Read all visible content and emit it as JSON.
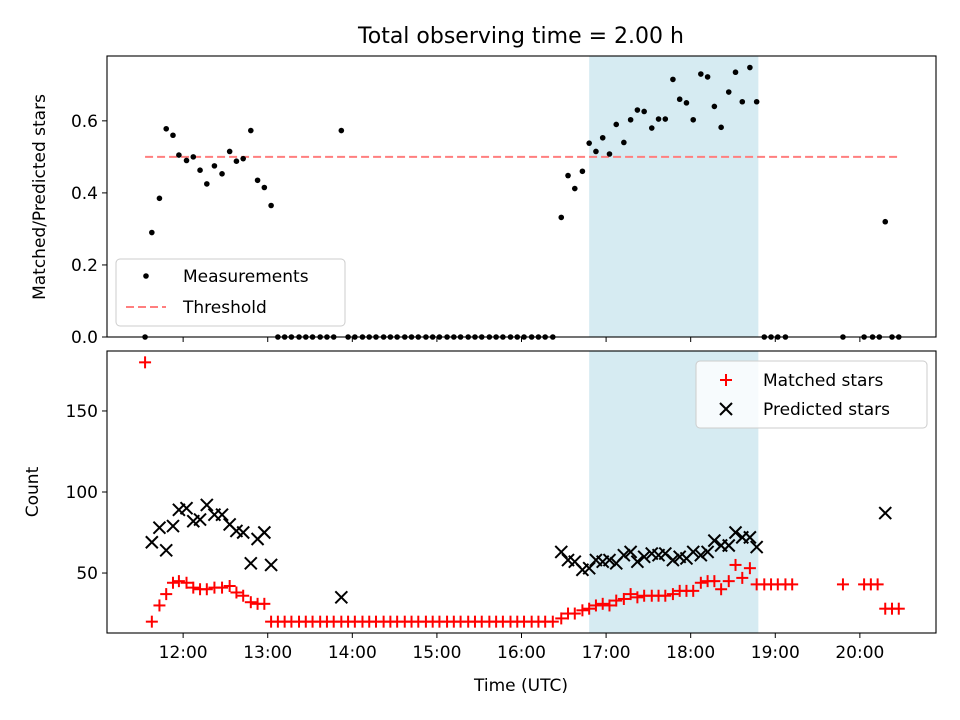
{
  "chart_data": [
    {
      "type": "scatter",
      "title": "Total observing time = 2.00 h",
      "ylabel": "Matched/Predicted stars",
      "xlim": [
        11.1,
        20.9
      ],
      "ylim": [
        0.0,
        0.78
      ],
      "yticks": [
        0.0,
        0.2,
        0.4,
        0.6
      ],
      "ytick_labels": [
        "0.0",
        "0.2",
        "0.4",
        "0.6"
      ],
      "xticks": [
        12,
        13,
        14,
        15,
        16,
        17,
        18,
        19,
        20
      ],
      "highlight_span": [
        16.8,
        18.8
      ],
      "highlight_color": "#add8e6",
      "threshold": {
        "name": "Threshold",
        "y": 0.5,
        "x_range": [
          11.55,
          20.45
        ],
        "color": "#ff7f7f"
      },
      "legend": {
        "position": "lower-left",
        "entries": [
          "Measurements",
          "Threshold"
        ]
      },
      "series": [
        {
          "name": "Measurements",
          "color": "#000000",
          "marker": "dot",
          "points": [
            [
              11.55,
              0.0
            ],
            [
              11.63,
              0.29
            ],
            [
              11.72,
              0.385
            ],
            [
              11.8,
              0.578
            ],
            [
              11.88,
              0.56
            ],
            [
              11.95,
              0.505
            ],
            [
              12.04,
              0.49
            ],
            [
              12.12,
              0.5
            ],
            [
              12.2,
              0.463
            ],
            [
              12.28,
              0.425
            ],
            [
              12.37,
              0.475
            ],
            [
              12.46,
              0.453
            ],
            [
              12.55,
              0.515
            ],
            [
              12.63,
              0.488
            ],
            [
              12.71,
              0.495
            ],
            [
              12.8,
              0.573
            ],
            [
              12.88,
              0.435
            ],
            [
              12.96,
              0.415
            ],
            [
              13.04,
              0.365
            ],
            [
              13.12,
              0.0
            ],
            [
              13.2,
              0.0
            ],
            [
              13.28,
              0.0
            ],
            [
              13.37,
              0.0
            ],
            [
              13.45,
              0.0
            ],
            [
              13.53,
              0.0
            ],
            [
              13.62,
              0.0
            ],
            [
              13.7,
              0.0
            ],
            [
              13.78,
              0.0
            ],
            [
              13.87,
              0.573
            ],
            [
              13.95,
              0.0
            ],
            [
              14.03,
              0.0
            ],
            [
              14.12,
              0.0
            ],
            [
              14.2,
              0.0
            ],
            [
              14.28,
              0.0
            ],
            [
              14.37,
              0.0
            ],
            [
              14.45,
              0.0
            ],
            [
              14.53,
              0.0
            ],
            [
              14.62,
              0.0
            ],
            [
              14.7,
              0.0
            ],
            [
              14.78,
              0.0
            ],
            [
              14.87,
              0.0
            ],
            [
              14.95,
              0.0
            ],
            [
              15.03,
              0.0
            ],
            [
              15.12,
              0.0
            ],
            [
              15.2,
              0.0
            ],
            [
              15.28,
              0.0
            ],
            [
              15.37,
              0.0
            ],
            [
              15.45,
              0.0
            ],
            [
              15.53,
              0.0
            ],
            [
              15.62,
              0.0
            ],
            [
              15.7,
              0.0
            ],
            [
              15.78,
              0.0
            ],
            [
              15.87,
              0.0
            ],
            [
              15.95,
              0.0
            ],
            [
              16.03,
              0.0
            ],
            [
              16.12,
              0.0
            ],
            [
              16.2,
              0.0
            ],
            [
              16.28,
              0.0
            ],
            [
              16.37,
              0.0
            ],
            [
              16.47,
              0.332
            ],
            [
              16.55,
              0.448
            ],
            [
              16.63,
              0.412
            ],
            [
              16.72,
              0.46
            ],
            [
              16.8,
              0.538
            ],
            [
              16.88,
              0.515
            ],
            [
              16.96,
              0.553
            ],
            [
              17.04,
              0.508
            ],
            [
              17.12,
              0.59
            ],
            [
              17.21,
              0.54
            ],
            [
              17.29,
              0.603
            ],
            [
              17.37,
              0.63
            ],
            [
              17.45,
              0.626
            ],
            [
              17.54,
              0.58
            ],
            [
              17.62,
              0.605
            ],
            [
              17.7,
              0.605
            ],
            [
              17.79,
              0.715
            ],
            [
              17.87,
              0.66
            ],
            [
              17.95,
              0.65
            ],
            [
              18.03,
              0.603
            ],
            [
              18.12,
              0.73
            ],
            [
              18.2,
              0.722
            ],
            [
              18.28,
              0.64
            ],
            [
              18.36,
              0.582
            ],
            [
              18.45,
              0.68
            ],
            [
              18.53,
              0.735
            ],
            [
              18.61,
              0.653
            ],
            [
              18.7,
              0.748
            ],
            [
              18.78,
              0.653
            ],
            [
              18.87,
              0.0
            ],
            [
              18.95,
              0.0
            ],
            [
              19.03,
              0.0
            ],
            [
              19.12,
              0.0
            ],
            [
              19.8,
              0.0
            ],
            [
              20.05,
              0.0
            ],
            [
              20.15,
              0.0
            ],
            [
              20.23,
              0.0
            ],
            [
              20.3,
              0.32
            ],
            [
              20.38,
              0.0
            ],
            [
              20.46,
              0.0
            ]
          ]
        }
      ]
    },
    {
      "type": "scatter",
      "xlabel": "Time (UTC)",
      "ylabel": "Count",
      "xlim": [
        11.1,
        20.9
      ],
      "ylim": [
        13,
        187
      ],
      "yticks": [
        50,
        100,
        150
      ],
      "ytick_labels": [
        "50",
        "100",
        "150"
      ],
      "xticks": [
        12,
        13,
        14,
        15,
        16,
        17,
        18,
        19,
        20
      ],
      "xtick_labels": [
        "12:00",
        "13:00",
        "14:00",
        "15:00",
        "16:00",
        "17:00",
        "18:00",
        "19:00",
        "20:00"
      ],
      "highlight_span": [
        16.8,
        18.8
      ],
      "highlight_color": "#add8e6",
      "legend": {
        "position": "upper-right",
        "entries": [
          "Matched stars",
          "Predicted stars"
        ]
      },
      "series": [
        {
          "name": "Matched stars",
          "color": "#ff0000",
          "marker": "plus",
          "points": [
            [
              11.55,
              180
            ],
            [
              11.63,
              20
            ],
            [
              11.72,
              30
            ],
            [
              11.8,
              37
            ],
            [
              11.88,
              44
            ],
            [
              11.95,
              45
            ],
            [
              12.04,
              44
            ],
            [
              12.12,
              41
            ],
            [
              12.2,
              40
            ],
            [
              12.28,
              40
            ],
            [
              12.37,
              41
            ],
            [
              12.46,
              41
            ],
            [
              12.55,
              42
            ],
            [
              12.63,
              38
            ],
            [
              12.71,
              36
            ],
            [
              12.8,
              32
            ],
            [
              12.88,
              31
            ],
            [
              12.96,
              31
            ],
            [
              13.04,
              20
            ],
            [
              13.12,
              20
            ],
            [
              13.2,
              20
            ],
            [
              13.28,
              20
            ],
            [
              13.37,
              20
            ],
            [
              13.45,
              20
            ],
            [
              13.53,
              20
            ],
            [
              13.62,
              20
            ],
            [
              13.7,
              20
            ],
            [
              13.78,
              20
            ],
            [
              13.87,
              20
            ],
            [
              13.95,
              20
            ],
            [
              14.03,
              20
            ],
            [
              14.12,
              20
            ],
            [
              14.2,
              20
            ],
            [
              14.28,
              20
            ],
            [
              14.37,
              20
            ],
            [
              14.45,
              20
            ],
            [
              14.53,
              20
            ],
            [
              14.62,
              20
            ],
            [
              14.7,
              20
            ],
            [
              14.78,
              20
            ],
            [
              14.87,
              20
            ],
            [
              14.95,
              20
            ],
            [
              15.03,
              20
            ],
            [
              15.12,
              20
            ],
            [
              15.2,
              20
            ],
            [
              15.28,
              20
            ],
            [
              15.37,
              20
            ],
            [
              15.45,
              20
            ],
            [
              15.53,
              20
            ],
            [
              15.62,
              20
            ],
            [
              15.7,
              20
            ],
            [
              15.78,
              20
            ],
            [
              15.87,
              20
            ],
            [
              15.95,
              20
            ],
            [
              16.03,
              20
            ],
            [
              16.12,
              20
            ],
            [
              16.2,
              20
            ],
            [
              16.28,
              20
            ],
            [
              16.37,
              20
            ],
            [
              16.47,
              22
            ],
            [
              16.55,
              25
            ],
            [
              16.63,
              25
            ],
            [
              16.72,
              27
            ],
            [
              16.8,
              28
            ],
            [
              16.88,
              30
            ],
            [
              16.96,
              31
            ],
            [
              17.04,
              30
            ],
            [
              17.12,
              33
            ],
            [
              17.21,
              34
            ],
            [
              17.29,
              37
            ],
            [
              17.37,
              35
            ],
            [
              17.45,
              36
            ],
            [
              17.54,
              36
            ],
            [
              17.62,
              36
            ],
            [
              17.7,
              36
            ],
            [
              17.79,
              37
            ],
            [
              17.87,
              39
            ],
            [
              17.95,
              39
            ],
            [
              18.03,
              39
            ],
            [
              18.12,
              44
            ],
            [
              18.2,
              45
            ],
            [
              18.28,
              45
            ],
            [
              18.36,
              40
            ],
            [
              18.45,
              45
            ],
            [
              18.53,
              55
            ],
            [
              18.61,
              47
            ],
            [
              18.7,
              53
            ],
            [
              18.78,
              43
            ],
            [
              18.87,
              43
            ],
            [
              18.95,
              43
            ],
            [
              19.03,
              43
            ],
            [
              19.12,
              43
            ],
            [
              19.2,
              43
            ],
            [
              19.8,
              43
            ],
            [
              20.05,
              43
            ],
            [
              20.13,
              43
            ],
            [
              20.21,
              43
            ],
            [
              20.3,
              28
            ],
            [
              20.38,
              28
            ],
            [
              20.46,
              28
            ]
          ]
        },
        {
          "name": "Predicted stars",
          "color": "#000000",
          "marker": "x",
          "points": [
            [
              11.63,
              69
            ],
            [
              11.72,
              78
            ],
            [
              11.8,
              64
            ],
            [
              11.88,
              79
            ],
            [
              11.95,
              89
            ],
            [
              12.04,
              90
            ],
            [
              12.12,
              82
            ],
            [
              12.2,
              83
            ],
            [
              12.28,
              92
            ],
            [
              12.37,
              86
            ],
            [
              12.46,
              86
            ],
            [
              12.55,
              80
            ],
            [
              12.63,
              76
            ],
            [
              12.71,
              75
            ],
            [
              12.8,
              56
            ],
            [
              12.88,
              71
            ],
            [
              12.96,
              75
            ],
            [
              13.04,
              55
            ],
            [
              13.87,
              35
            ],
            [
              16.47,
              63
            ],
            [
              16.55,
              58
            ],
            [
              16.63,
              57
            ],
            [
              16.72,
              52
            ],
            [
              16.8,
              53
            ],
            [
              16.88,
              58
            ],
            [
              16.96,
              57
            ],
            [
              17.04,
              58
            ],
            [
              17.12,
              56
            ],
            [
              17.21,
              61
            ],
            [
              17.29,
              63
            ],
            [
              17.37,
              57
            ],
            [
              17.45,
              60
            ],
            [
              17.54,
              62
            ],
            [
              17.62,
              61
            ],
            [
              17.7,
              62
            ],
            [
              17.79,
              58
            ],
            [
              17.87,
              60
            ],
            [
              17.95,
              59
            ],
            [
              18.03,
              63
            ],
            [
              18.12,
              61
            ],
            [
              18.2,
              63
            ],
            [
              18.28,
              70
            ],
            [
              18.36,
              67
            ],
            [
              18.45,
              67
            ],
            [
              18.53,
              75
            ],
            [
              18.61,
              72
            ],
            [
              18.7,
              72
            ],
            [
              18.78,
              66
            ],
            [
              20.3,
              87
            ]
          ]
        }
      ]
    }
  ]
}
